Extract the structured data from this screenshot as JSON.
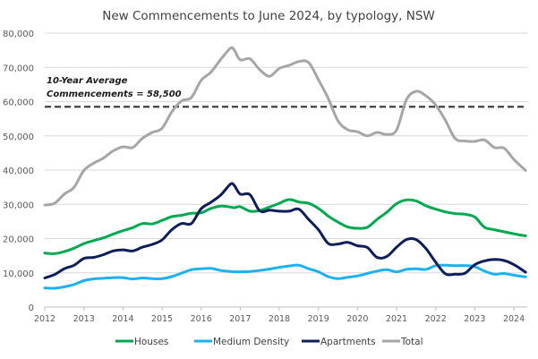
{
  "chart_data": {
    "type": "line",
    "title": "New Commencements to June 2024, by typology, NSW",
    "xlabel": "",
    "ylabel": "",
    "xlim": [
      2012,
      2024.35
    ],
    "ylim": [
      0,
      80000
    ],
    "x_ticks": [
      "2012",
      "2013",
      "2014",
      "2015",
      "2016",
      "2017",
      "2018",
      "2019",
      "2020",
      "2021",
      "2022",
      "2023",
      "2024"
    ],
    "y_ticks": [
      "0",
      "10,000",
      "20,000",
      "30,000",
      "40,000",
      "50,000",
      "60,000",
      "70,000",
      "80,000"
    ],
    "y_tick_values": [
      0,
      10000,
      20000,
      30000,
      40000,
      50000,
      60000,
      70000,
      80000
    ],
    "grid": "horizontal",
    "legend_position": "bottom",
    "x": [
      2012.0,
      2012.25,
      2012.5,
      2012.75,
      2013.0,
      2013.25,
      2013.5,
      2013.75,
      2014.0,
      2014.25,
      2014.5,
      2014.75,
      2015.0,
      2015.25,
      2015.5,
      2015.75,
      2016.0,
      2016.25,
      2016.5,
      2016.75,
      2016.85,
      2017.0,
      2017.25,
      2017.5,
      2017.75,
      2018.0,
      2018.25,
      2018.5,
      2018.75,
      2019.0,
      2019.25,
      2019.5,
      2019.75,
      2020.0,
      2020.25,
      2020.5,
      2020.75,
      2021.0,
      2021.25,
      2021.5,
      2021.75,
      2022.0,
      2022.25,
      2022.5,
      2022.75,
      2023.0,
      2023.25,
      2023.5,
      2023.75,
      2024.0,
      2024.3
    ],
    "series": [
      {
        "name": "Houses",
        "color": "#00A94F",
        "values": [
          15800,
          15600,
          16200,
          17200,
          18500,
          19400,
          20200,
          21300,
          22300,
          23200,
          24400,
          24300,
          25300,
          26400,
          26800,
          27400,
          27500,
          28800,
          29500,
          29200,
          29000,
          29300,
          28000,
          28200,
          29200,
          30300,
          31400,
          30700,
          30300,
          28800,
          26600,
          24800,
          23400,
          23000,
          23300,
          25600,
          27700,
          30200,
          31300,
          31000,
          29600,
          28600,
          27800,
          27300,
          27100,
          26300,
          23300,
          22600,
          22000,
          21400,
          20800
        ]
      },
      {
        "name": "Medium Density",
        "color": "#1AB2F0",
        "values": [
          5600,
          5500,
          5900,
          6600,
          7700,
          8200,
          8400,
          8600,
          8600,
          8200,
          8500,
          8300,
          8300,
          8900,
          9900,
          10900,
          11200,
          11300,
          10700,
          10400,
          10300,
          10300,
          10400,
          10700,
          11100,
          11600,
          12000,
          12200,
          11200,
          10300,
          8900,
          8300,
          8700,
          9100,
          9800,
          10500,
          10900,
          10300,
          11000,
          11200,
          11000,
          12100,
          12200,
          12100,
          12100,
          11800,
          10500,
          9600,
          9800,
          9300,
          8800
        ]
      },
      {
        "name": "Apartments",
        "color": "#0D1E5A",
        "values": [
          8500,
          9500,
          11200,
          12200,
          14200,
          14500,
          15300,
          16400,
          16700,
          16400,
          17500,
          18300,
          19600,
          22600,
          24400,
          24400,
          28700,
          30600,
          32700,
          35900,
          35500,
          33000,
          32800,
          28100,
          28300,
          28000,
          28000,
          28600,
          25600,
          22600,
          18600,
          18400,
          18900,
          17900,
          17400,
          14500,
          14800,
          17500,
          19700,
          19700,
          17100,
          13100,
          9700,
          9600,
          9900,
          12400,
          13500,
          13900,
          13600,
          12400,
          10200
        ]
      },
      {
        "name": "Total",
        "color": "#A6A6A6",
        "values": [
          29800,
          30300,
          33000,
          35000,
          39900,
          42000,
          43500,
          45600,
          46800,
          46600,
          49300,
          51000,
          52200,
          57000,
          60200,
          61200,
          66200,
          68600,
          72300,
          75600,
          75000,
          72200,
          72500,
          69300,
          67400,
          69700,
          70600,
          71700,
          71400,
          66400,
          61000,
          54400,
          51800,
          51200,
          50000,
          51000,
          50400,
          51700,
          60500,
          63000,
          61700,
          59000,
          54500,
          49200,
          48500,
          48400,
          48800,
          46600,
          46400,
          43100,
          39900
        ]
      }
    ],
    "reference_line": {
      "value": 58500,
      "label_line1": "10-Year Average",
      "label_line2": "Commencements = 58,500",
      "color": "#404040",
      "style": "dashed"
    }
  }
}
